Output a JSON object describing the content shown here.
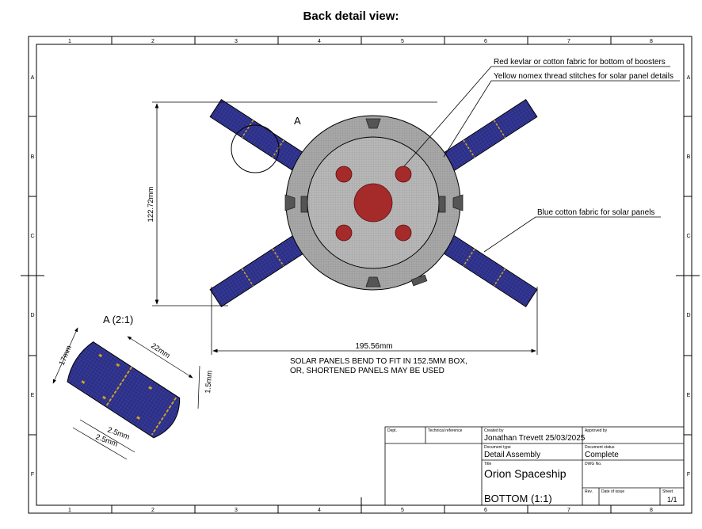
{
  "heading": "Back detail view:",
  "grid": {
    "columns": [
      "1",
      "2",
      "3",
      "4",
      "5",
      "6",
      "7",
      "8"
    ],
    "rows": [
      "A",
      "B",
      "C",
      "D",
      "E",
      "F"
    ]
  },
  "callouts": {
    "kevlar": "Red kevlar or cotton fabric for bottom of boosters",
    "nomex": "Yellow nomex thread stitches for solar panel details",
    "blue_cotton": "Blue cotton fabric for solar panels"
  },
  "dimensions": {
    "height": "122.72mm",
    "width": "195.56mm",
    "detail_marker": "A",
    "detail_title": "A (2:1)",
    "panel_width": "17mm",
    "panel_length": "22mm",
    "thickness": "1.5mm",
    "gap1": "2.5mm",
    "gap2": "2.5mm"
  },
  "note": {
    "line1": "SOLAR PANELS BEND TO FIT IN 152.5MM BOX,",
    "line2": "OR, SHORTENED PANELS MAY BE USED"
  },
  "title_block": {
    "dept_label": "Dept.",
    "tech_ref_label": "Technical reference",
    "created_by_label": "Created by",
    "created_by": "Jonathan Trevett 25/03/2025",
    "approved_by_label": "Approved by",
    "doc_type_label": "Document type",
    "doc_type": "Detail Assembly",
    "doc_status_label": "Document status",
    "doc_status": "Complete",
    "title_label": "Title",
    "title": "Orion Spaceship",
    "subtitle": "BOTTOM (1:1)",
    "dwg_label": "DWG No.",
    "rev_label": "Rev.",
    "date_label": "Date of issue",
    "sheet_label": "Sheet",
    "sheet": "1/1"
  },
  "colors": {
    "panel_blue": "#2b2f86",
    "stitch_yellow": "#c9a227",
    "booster_red": "#a52a2a",
    "hull_gray": "#a6a6a6"
  }
}
